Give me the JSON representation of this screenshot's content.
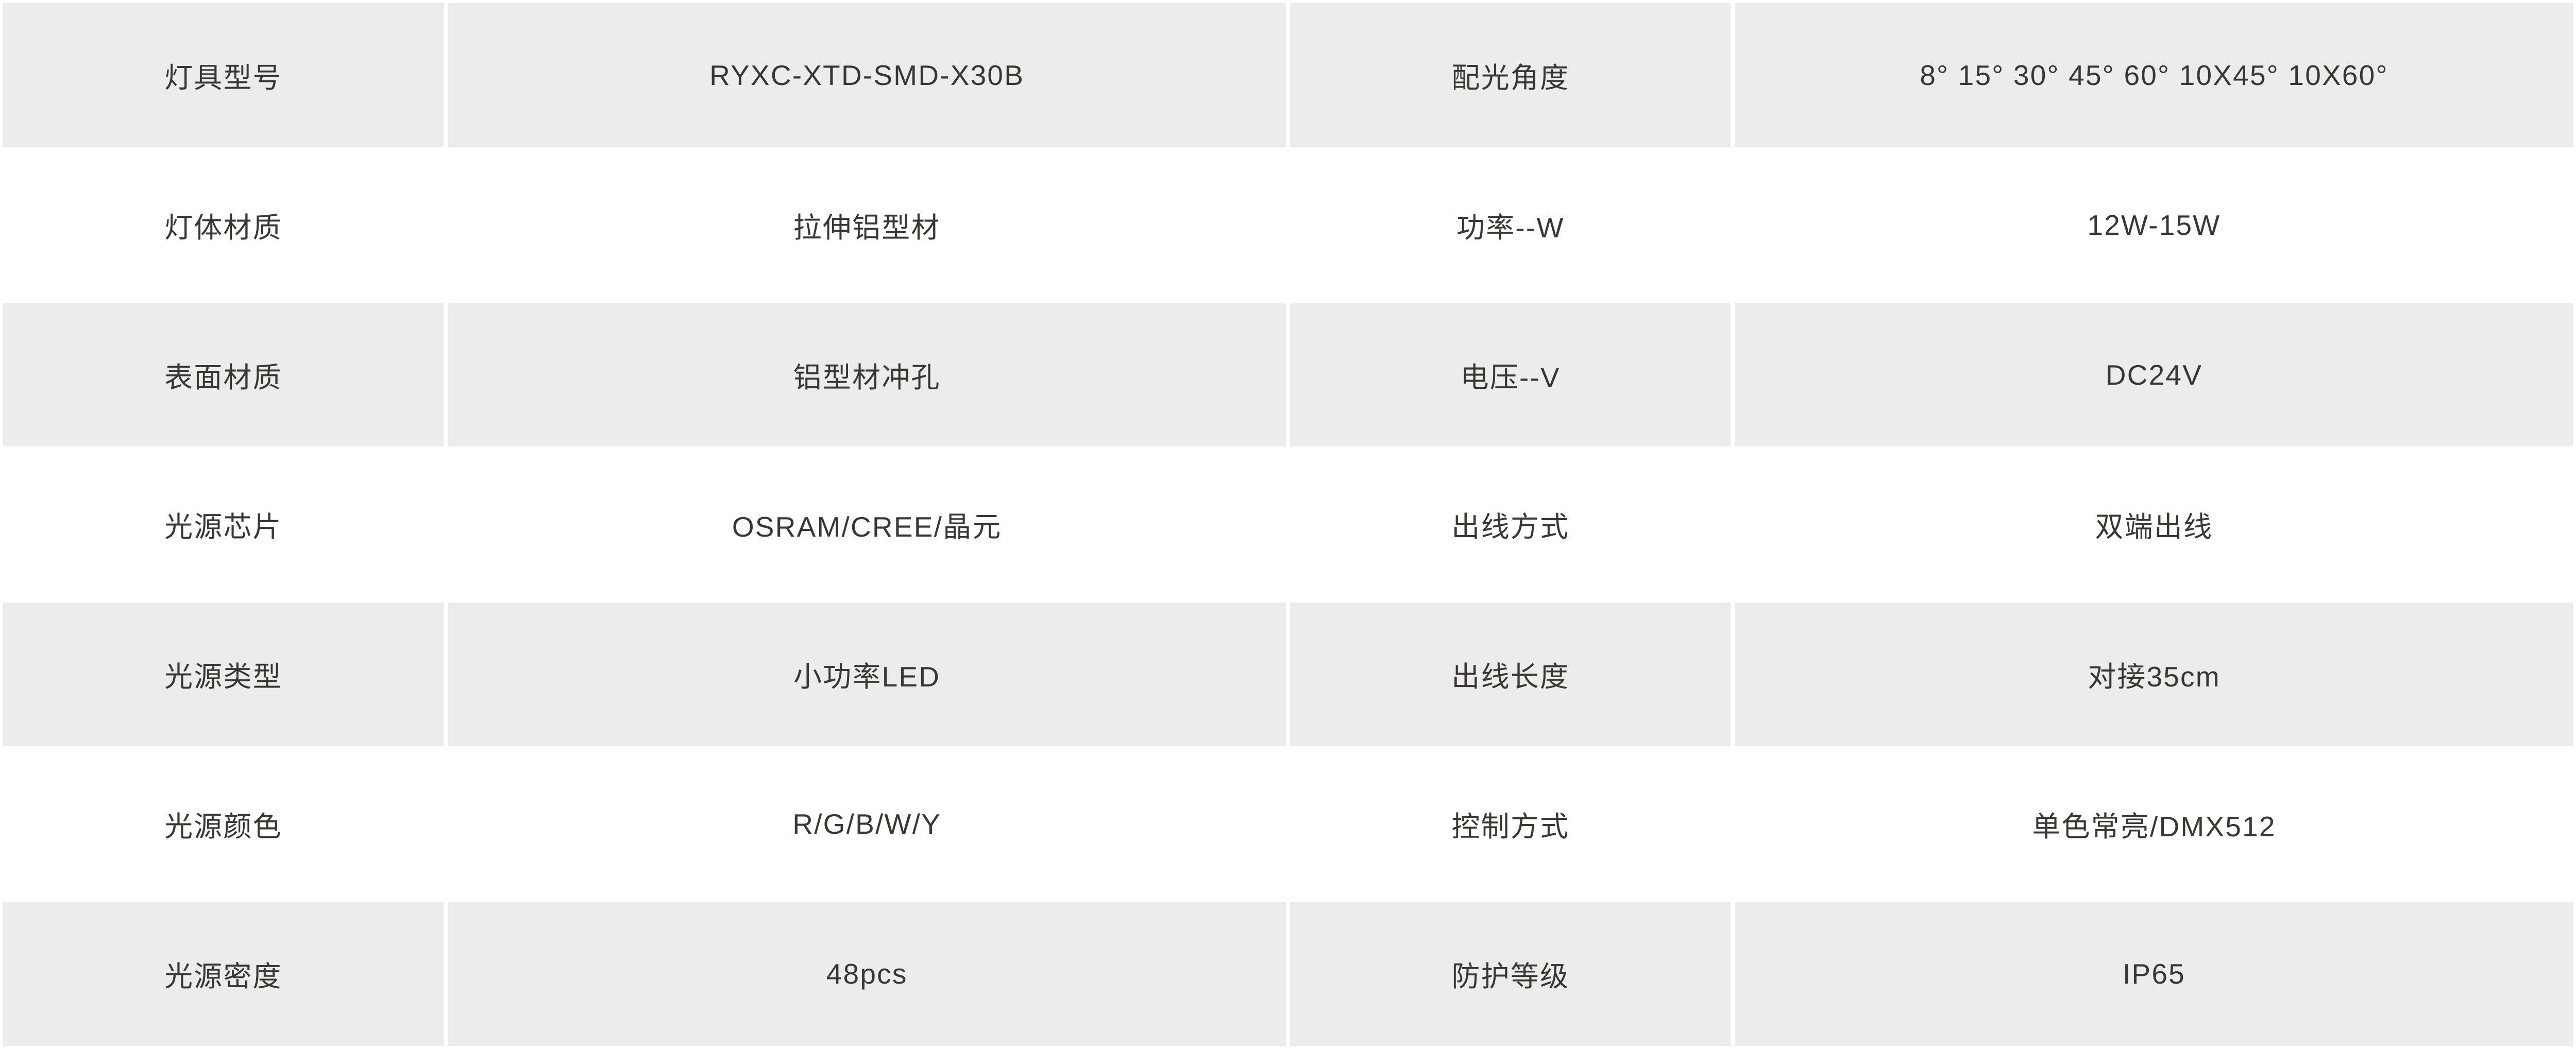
{
  "colors": {
    "row_alt_bg": "#ececec",
    "bg": "#ffffff",
    "text": "#3a3632"
  },
  "table": {
    "rows": [
      {
        "label1": "灯具型号",
        "value1": "RYXC-XTD-SMD-X30B",
        "label2": "配光角度",
        "value2": "8° 15° 30° 45° 60° 10X45° 10X60°"
      },
      {
        "label1": "灯体材质",
        "value1": "拉伸铝型材",
        "label2": "功率--W",
        "value2": "12W-15W"
      },
      {
        "label1": "表面材质",
        "value1": "铝型材冲孔",
        "label2": "电压--V",
        "value2": "DC24V"
      },
      {
        "label1": "光源芯片",
        "value1": "OSRAM/CREE/晶元",
        "label2": "出线方式",
        "value2": "双端出线"
      },
      {
        "label1": "光源类型",
        "value1": "小功率LED",
        "label2": "出线长度",
        "value2": "对接35cm"
      },
      {
        "label1": "光源颜色",
        "value1": "R/G/B/W/Y",
        "label2": "控制方式",
        "value2": "单色常亮/DMX512"
      },
      {
        "label1": "光源密度",
        "value1": "48pcs",
        "label2": "防护等级",
        "value2": "IP65"
      }
    ]
  }
}
